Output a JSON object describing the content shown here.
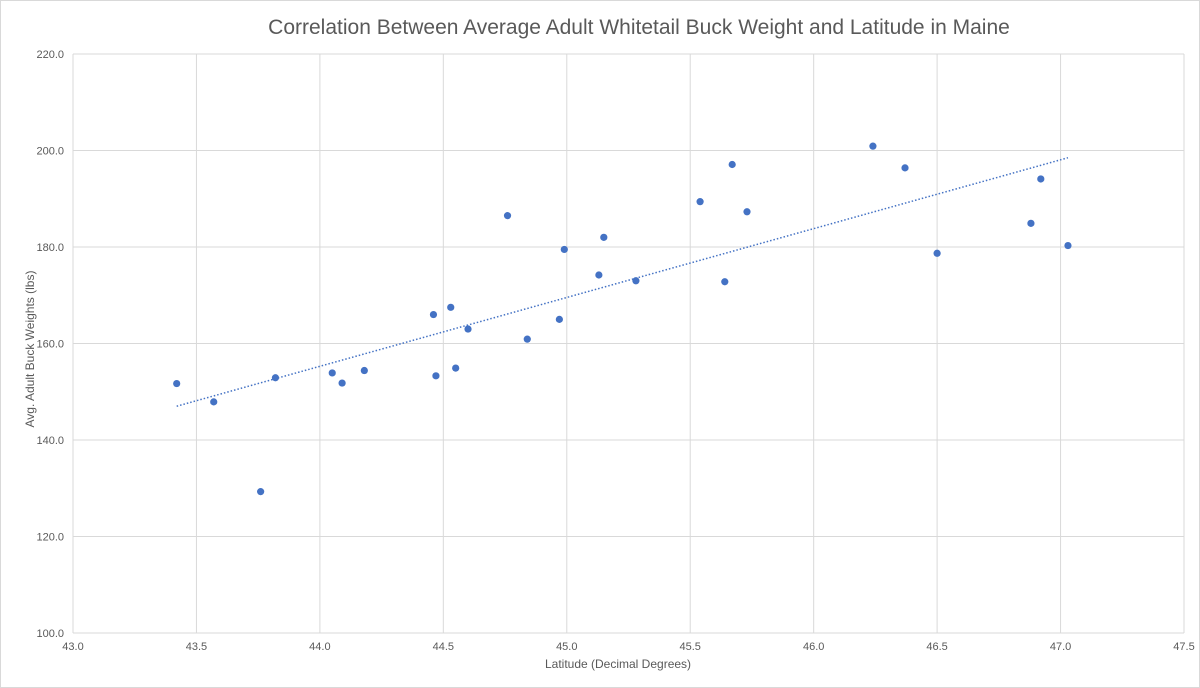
{
  "chart_data": {
    "type": "scatter",
    "title": "Correlation Between Average Adult Whitetail Buck Weight and Latitude in Maine",
    "xlabel": "Latitude (Decimal Degrees)",
    "ylabel": "Avg. Adult  Buck  Weights (lbs)",
    "xlim": [
      43.0,
      47.5
    ],
    "ylim": [
      100.0,
      220.0
    ],
    "x_ticks": [
      "43.0",
      "43.5",
      "44.0",
      "44.5",
      "45.0",
      "45.5",
      "46.0",
      "46.5",
      "47.0",
      "47.5"
    ],
    "y_ticks": [
      "100.0",
      "120.0",
      "140.0",
      "160.0",
      "180.0",
      "200.0",
      "220.0"
    ],
    "grid": "vertical and horizontal",
    "point_color": "#4472c4",
    "trendline": {
      "type": "linear",
      "style": "dotted",
      "color": "#4472c4",
      "x": [
        43.42,
        47.03
      ],
      "y": [
        147.0,
        198.5
      ]
    },
    "points": [
      {
        "x": 43.42,
        "y": 151.7
      },
      {
        "x": 43.57,
        "y": 147.9
      },
      {
        "x": 43.76,
        "y": 129.3
      },
      {
        "x": 43.82,
        "y": 152.9
      },
      {
        "x": 44.05,
        "y": 153.9
      },
      {
        "x": 44.09,
        "y": 151.8
      },
      {
        "x": 44.18,
        "y": 154.4
      },
      {
        "x": 44.46,
        "y": 166.0
      },
      {
        "x": 44.47,
        "y": 153.3
      },
      {
        "x": 44.53,
        "y": 167.5
      },
      {
        "x": 44.55,
        "y": 154.9
      },
      {
        "x": 44.6,
        "y": 163.0
      },
      {
        "x": 44.76,
        "y": 186.5
      },
      {
        "x": 44.84,
        "y": 160.9
      },
      {
        "x": 44.97,
        "y": 165.0
      },
      {
        "x": 44.99,
        "y": 179.5
      },
      {
        "x": 45.13,
        "y": 174.2
      },
      {
        "x": 45.15,
        "y": 182.0
      },
      {
        "x": 45.28,
        "y": 173.0
      },
      {
        "x": 45.54,
        "y": 189.4
      },
      {
        "x": 45.64,
        "y": 172.8
      },
      {
        "x": 45.67,
        "y": 197.1
      },
      {
        "x": 45.73,
        "y": 187.3
      },
      {
        "x": 46.24,
        "y": 200.9
      },
      {
        "x": 46.37,
        "y": 196.4
      },
      {
        "x": 46.5,
        "y": 178.7
      },
      {
        "x": 46.88,
        "y": 184.9
      },
      {
        "x": 46.92,
        "y": 194.1
      },
      {
        "x": 47.03,
        "y": 180.3
      }
    ]
  }
}
